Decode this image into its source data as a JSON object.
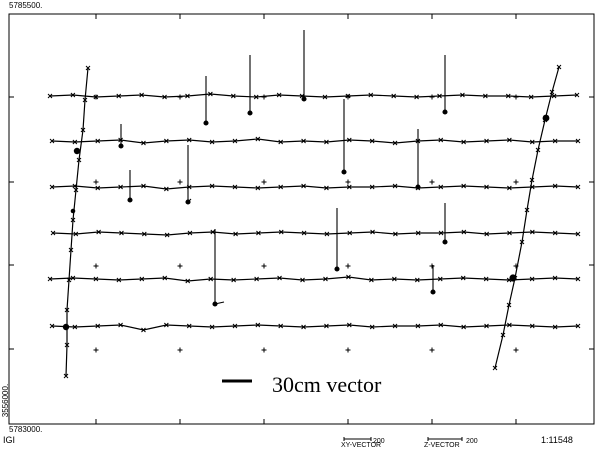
{
  "labels": {
    "northing_top": "5785500.",
    "northing_bottom": "5783000.",
    "easting_side": "3556000.",
    "system": "IGI",
    "xy_vector": "XY-VECTOR",
    "xy_scale": "200",
    "z_vector": "Z-VECTOR",
    "z_scale": "200",
    "map_scale": "1:11548"
  },
  "legend": {
    "text": "30cm vector"
  },
  "colors": {
    "ink": "#000000",
    "background": "#ffffff"
  }
}
